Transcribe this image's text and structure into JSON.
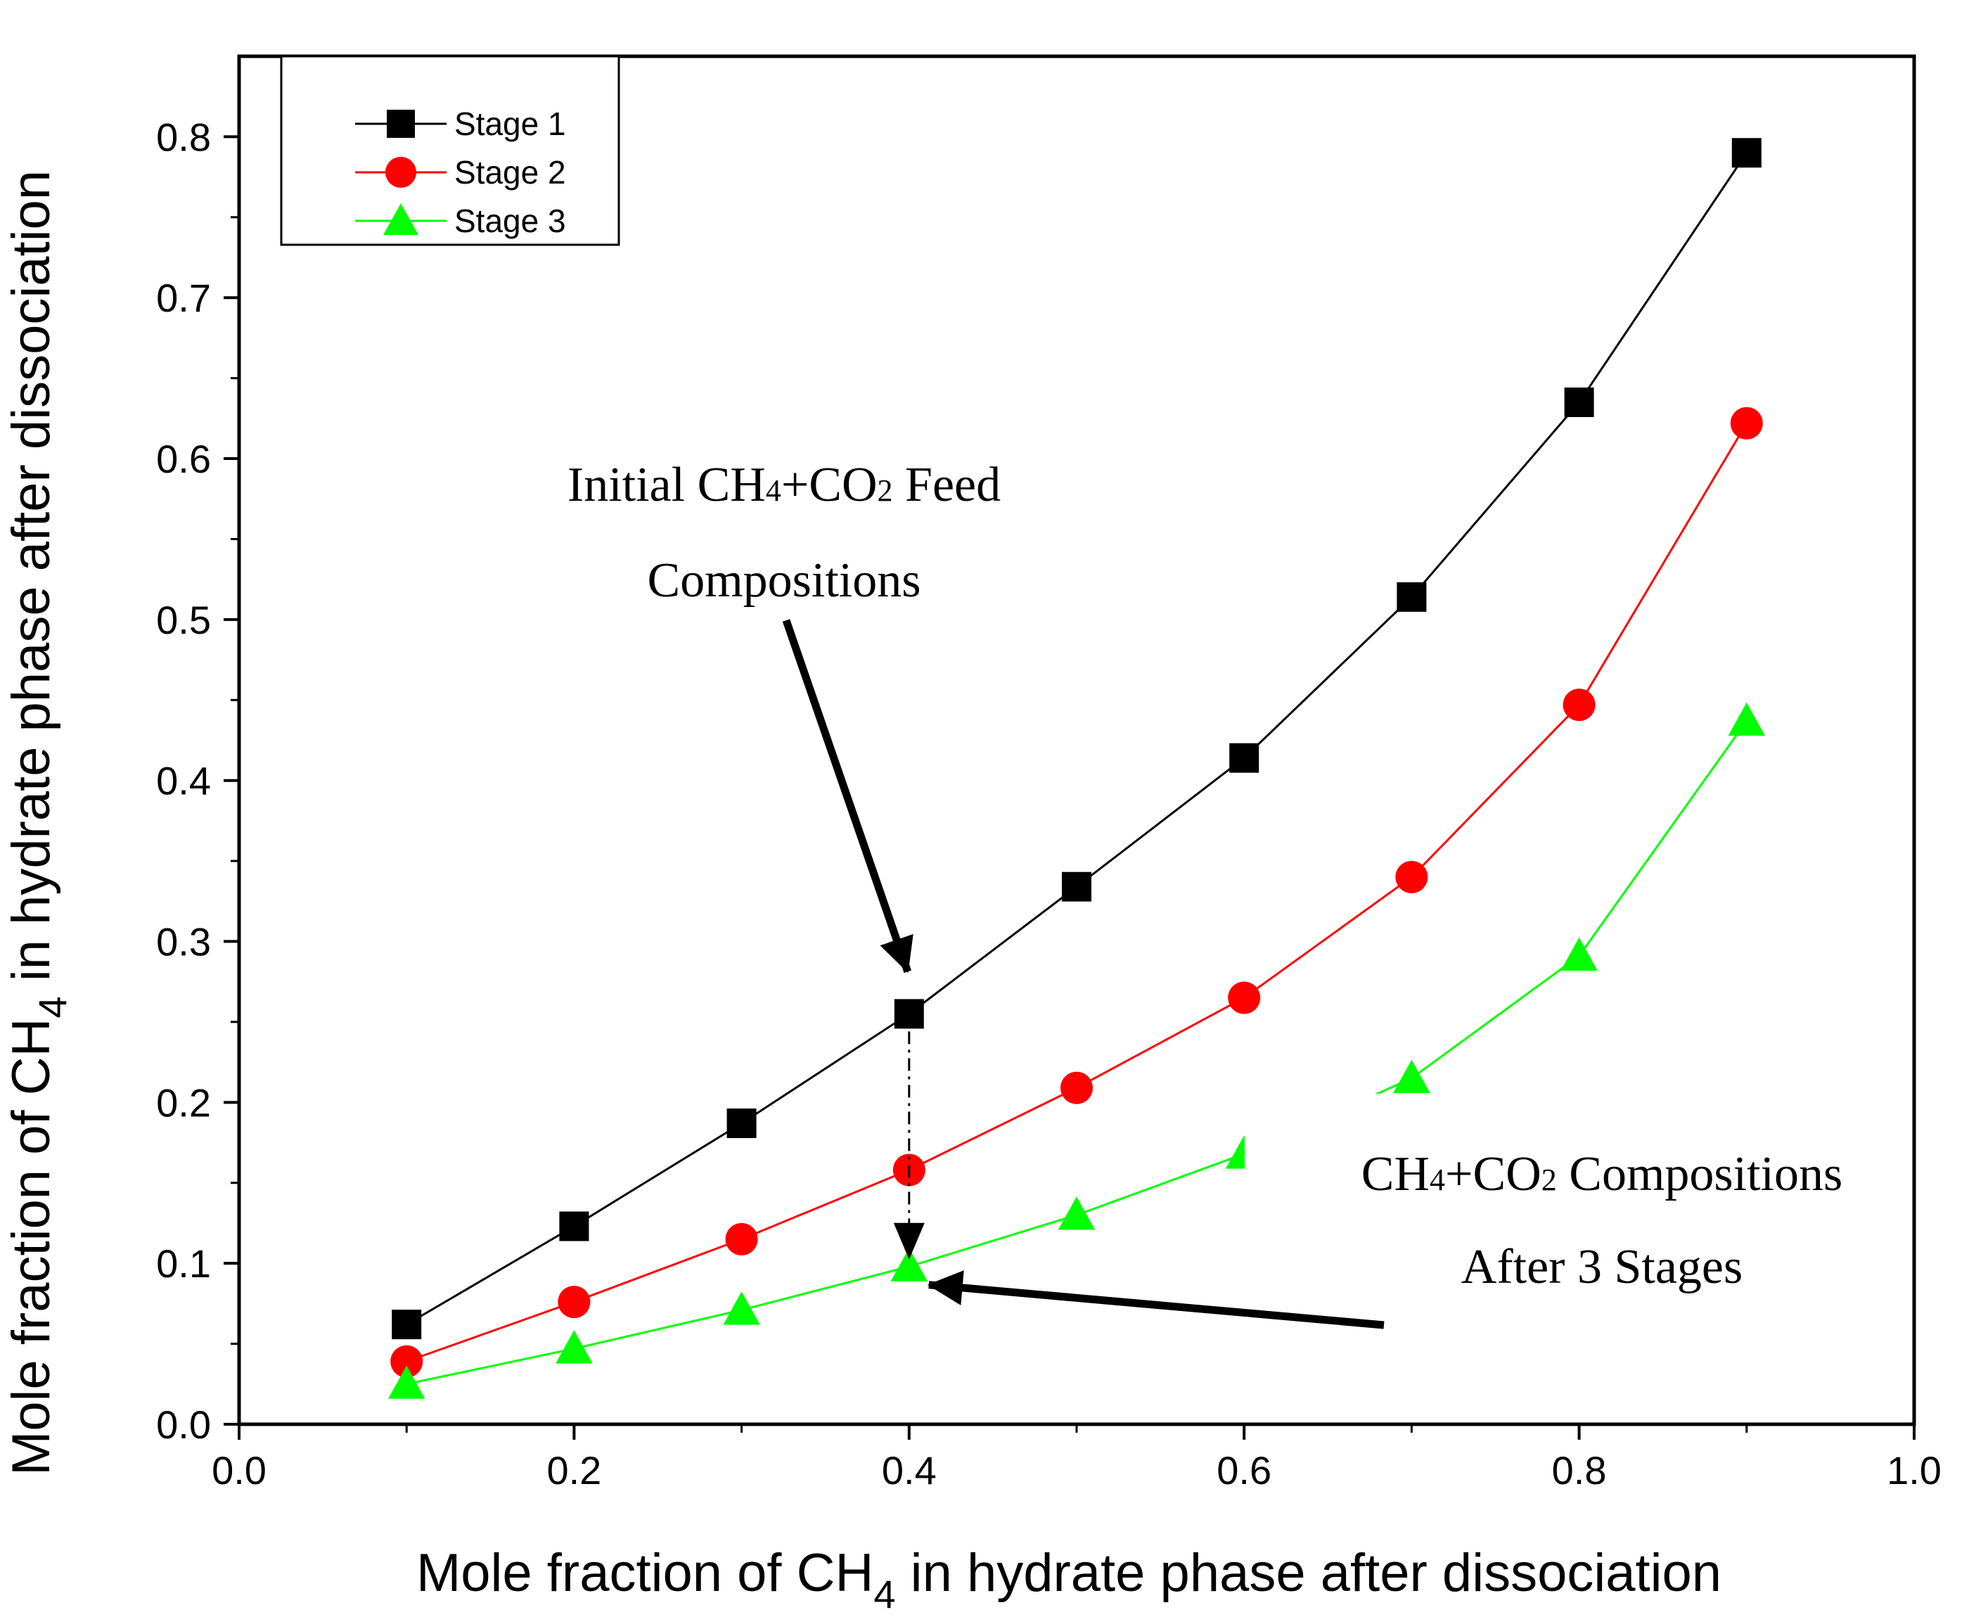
{
  "chart_data": {
    "type": "line",
    "x": [
      0.1,
      0.2,
      0.3,
      0.4,
      0.5,
      0.6,
      0.7,
      0.8,
      0.9
    ],
    "series": [
      {
        "name": "Stage 1",
        "marker": "square",
        "color": "#000000",
        "values": [
          0.062,
          0.123,
          0.187,
          0.255,
          0.334,
          0.414,
          0.514,
          0.635,
          0.79
        ]
      },
      {
        "name": "Stage 2",
        "marker": "circle",
        "color": "#ff0000",
        "values": [
          0.039,
          0.076,
          0.115,
          0.158,
          0.209,
          0.265,
          0.34,
          0.447,
          0.622
        ]
      },
      {
        "name": "Stage 3",
        "marker": "triangle",
        "color": "#00ff00",
        "values": [
          0.025,
          0.047,
          0.071,
          0.098,
          0.13,
          0.168,
          0.215,
          0.291,
          0.437
        ]
      }
    ],
    "xlim": [
      0.0,
      1.0
    ],
    "ylim": [
      0.0,
      0.85
    ],
    "xticks": [
      "0.0",
      "0.2",
      "0.4",
      "0.6",
      "0.8",
      "1.0"
    ],
    "yticks": [
      "0.0",
      "0.1",
      "0.2",
      "0.3",
      "0.4",
      "0.5",
      "0.6",
      "0.7",
      "0.8"
    ],
    "xlabel": {
      "prefix": "Mole fraction of CH",
      "sub": "4",
      "suffix": " in hydrate phase after dissociation"
    },
    "ylabel": {
      "prefix": "Mole fraction of CH",
      "sub": "4",
      "suffix": " in hydrate phase after dissociation"
    },
    "legend_position": "top-left",
    "grid": false,
    "annotations": {
      "feed": {
        "line1": {
          "a": "Initial CH",
          "s1": "4",
          "b": "+CO",
          "s2": "2",
          "c": " Feed"
        },
        "line2": "Compositions",
        "points_to": {
          "x": 0.4,
          "y": 0.255
        }
      },
      "after": {
        "line1": {
          "a": "CH",
          "s1": "4",
          "b": "+CO",
          "s2": "2",
          "c": " Compositions"
        },
        "line2": "After 3 Stages",
        "points_to": {
          "x": 0.4,
          "y": 0.098
        }
      },
      "dotted_arrow": {
        "x": 0.4,
        "from_y": 0.255,
        "to_y": 0.098
      }
    }
  }
}
